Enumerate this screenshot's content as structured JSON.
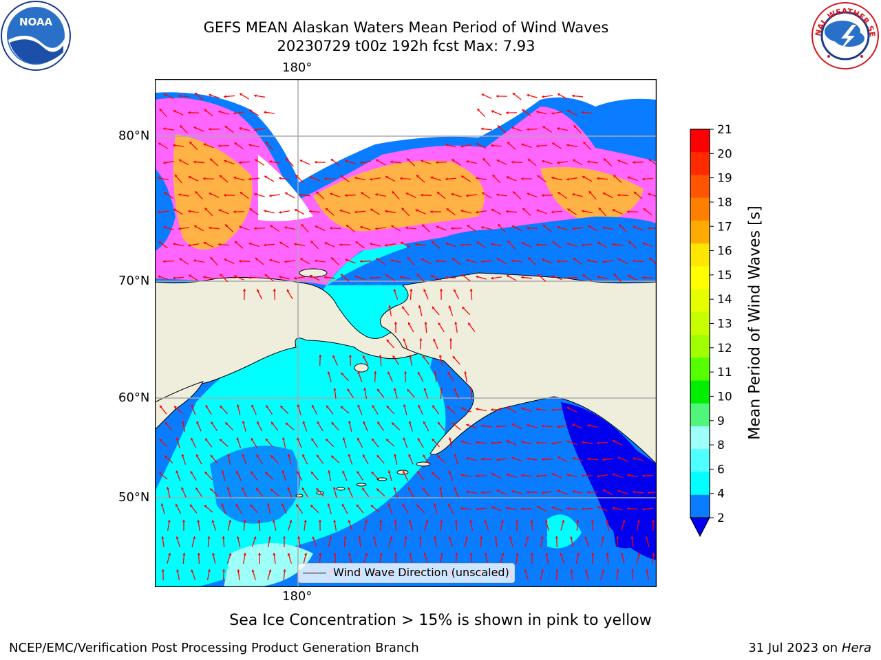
{
  "title": {
    "line1": "GEFS MEAN Alaskan Waters Mean Period of Wind Waves",
    "line2": "20230729 t00z 192h fcst   Max: 7.93"
  },
  "map": {
    "lon_label_top": "180°",
    "lon_label_bottom": "180°",
    "lat_labels": [
      "80°N",
      "70°N",
      "60°N",
      "50°N"
    ],
    "legend_text": "Wind Wave Direction (unscaled)",
    "colors": {
      "land": "#efeddc",
      "ocean_dark": "#0000ee",
      "ocean_mid": "#0a7cff",
      "ocean_light": "#00ffff",
      "ocean_pale": "#9efff8",
      "ice_pink": "#ff66ff",
      "ice_orange": "#ffb347",
      "arrow": "#ff0000",
      "grid": "#aaaaaa"
    }
  },
  "colorbar": {
    "label": "Mean Period of Wind Waves [s]",
    "ticks": [
      "21",
      "20",
      "19",
      "18",
      "17",
      "16",
      "15",
      "14",
      "13",
      "12",
      "11",
      "10",
      "9",
      "8",
      "6",
      "4",
      "2"
    ],
    "colors": [
      "#ff0000",
      "#ff2a00",
      "#ff5500",
      "#ff8000",
      "#ffaa00",
      "#ffe600",
      "#ffff00",
      "#e6ff00",
      "#c8ff00",
      "#a0ff00",
      "#55ff00",
      "#00ee00",
      "#50f57a",
      "#9efff8",
      "#50ffff",
      "#00ffff",
      "#0a7cff"
    ],
    "extend_color": "#0000ee"
  },
  "caption": "Sea Ice Concentration > 15% is shown in pink to yellow",
  "footer": {
    "left": "NCEP/EMC/Verification Post Processing Product Generation Branch",
    "right_date": "31 Jul 2023 on",
    "right_machine": "Hera"
  },
  "logos": {
    "noaa_text": "NOAA",
    "nws_ring": "NATIONAL WEATHER SERVICE"
  }
}
